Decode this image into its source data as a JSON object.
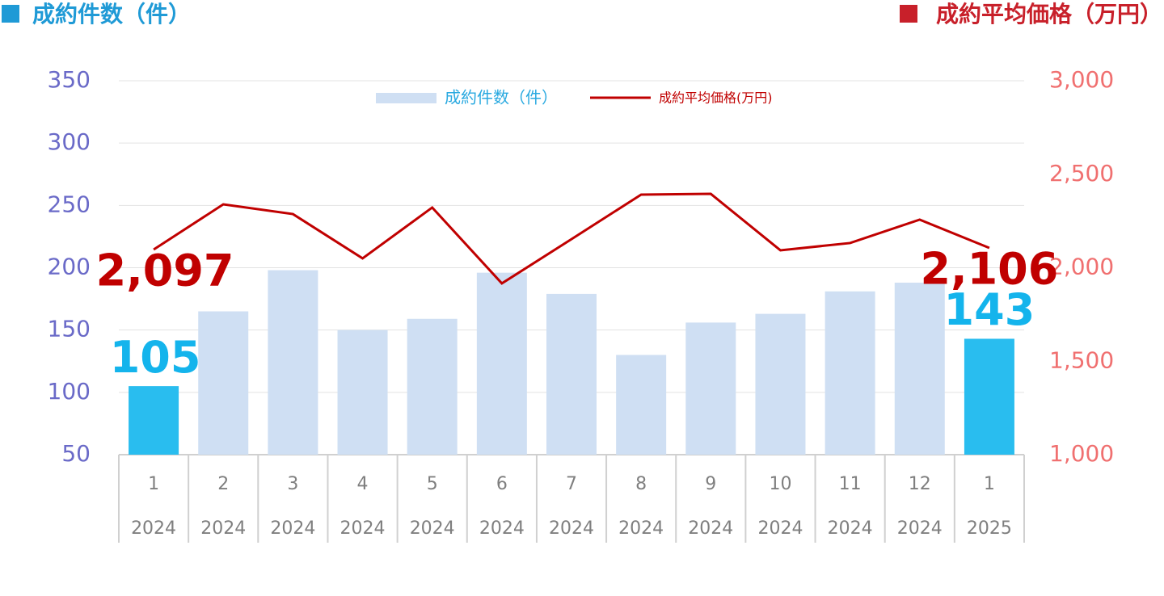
{
  "chart_data": {
    "type": "bar-line",
    "left_title": "成約件数（件）",
    "left_title_color": "#1f9ad6",
    "right_title": "成約平均価格（万円）",
    "right_title_color": "#c8202a",
    "categories": [
      "1",
      "2",
      "3",
      "4",
      "5",
      "6",
      "7",
      "8",
      "9",
      "10",
      "11",
      "12",
      "1"
    ],
    "category_years": [
      "2024",
      "2024",
      "2024",
      "2024",
      "2024",
      "2024",
      "2024",
      "2024",
      "2024",
      "2024",
      "2024",
      "2024",
      "2025"
    ],
    "series": [
      {
        "name": "成約件数（件）",
        "type": "bar",
        "color": "#cfdff3",
        "colors": [
          "#29bdef",
          "#cfdff3",
          "#cfdff3",
          "#cfdff3",
          "#cfdff3",
          "#cfdff3",
          "#cfdff3",
          "#cfdff3",
          "#cfdff3",
          "#cfdff3",
          "#cfdff3",
          "#cfdff3",
          "#29bdef"
        ],
        "values": [
          105,
          165,
          198,
          150,
          159,
          196,
          179,
          130,
          156,
          163,
          181,
          188,
          143
        ],
        "value_labels": [
          "105",
          null,
          null,
          null,
          null,
          null,
          null,
          null,
          null,
          null,
          null,
          null,
          "143"
        ],
        "label_color": "#14b4ec"
      },
      {
        "name": "成約平均価格(万円)",
        "type": "line",
        "axis": "y2",
        "color": "#c00000",
        "values": [
          2097,
          2339,
          2287,
          2050,
          2322,
          1916,
          2153,
          2391,
          2395,
          2093,
          2132,
          2257,
          2106
        ],
        "value_labels": [
          "2,097",
          null,
          null,
          null,
          null,
          null,
          null,
          null,
          null,
          null,
          null,
          null,
          "2,106"
        ],
        "label_color": "#c00000"
      }
    ],
    "ylim": [
      50,
      350
    ],
    "yticks": [
      50,
      100,
      150,
      200,
      250,
      300,
      350
    ],
    "y_tick_color": "#6a6ac8",
    "y2lim": [
      1000,
      3000
    ],
    "y2ticks": [
      {
        "value": 1000,
        "label": "1,000"
      },
      {
        "value": 1500,
        "label": "1,500"
      },
      {
        "value": 2000,
        "label": "2,000"
      },
      {
        "value": 2500,
        "label": "2,500"
      },
      {
        "value": 3000,
        "label": "3,000"
      }
    ],
    "y2_tick_color": "#f07070",
    "grid": true
  }
}
